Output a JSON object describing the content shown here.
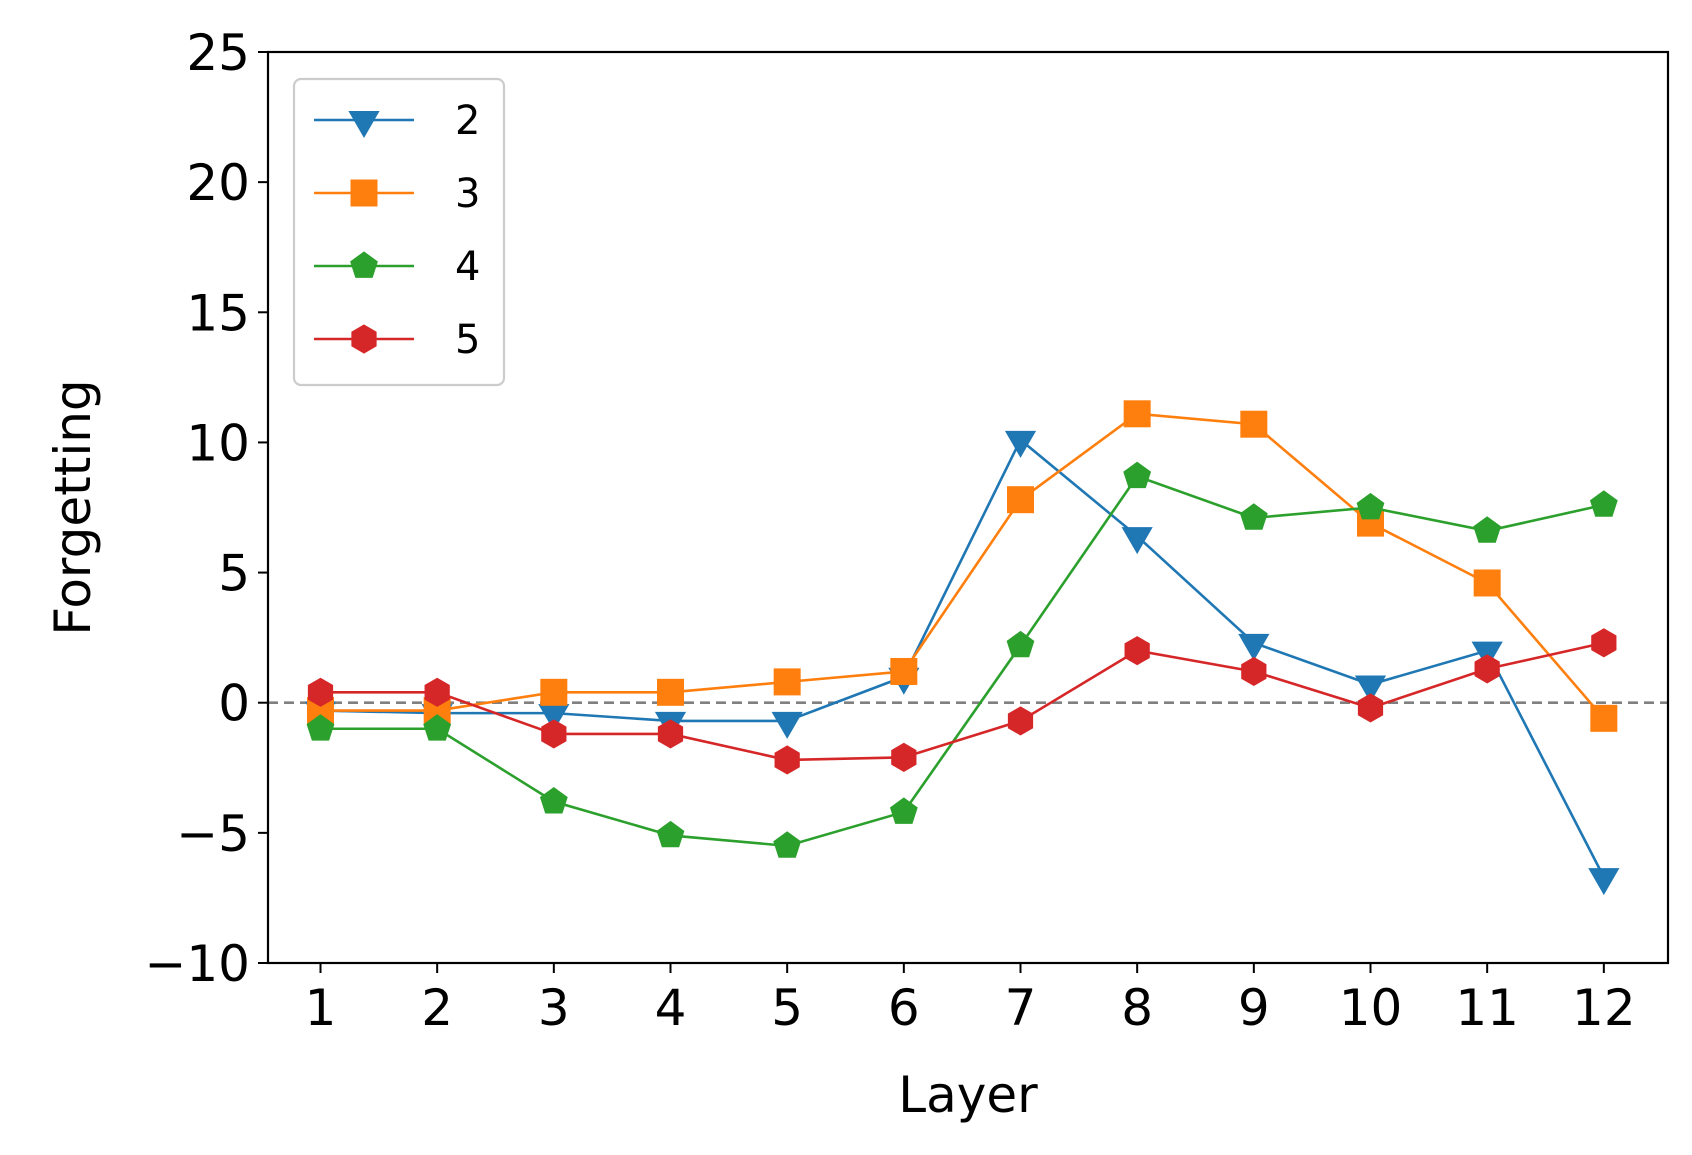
{
  "chart_data": {
    "type": "line",
    "title": "",
    "xlabel": "Layer",
    "ylabel": "Forgetting",
    "xlim": [
      0.55,
      12.55
    ],
    "ylim": [
      -10,
      25
    ],
    "x": [
      1,
      2,
      3,
      4,
      5,
      6,
      7,
      8,
      9,
      10,
      11,
      12
    ],
    "x_ticks": [
      "1",
      "2",
      "3",
      "4",
      "5",
      "6",
      "7",
      "8",
      "9",
      "10",
      "11",
      "12"
    ],
    "y_ticks": [
      -10,
      -5,
      0,
      5,
      10,
      15,
      20,
      25
    ],
    "y_tick_labels": [
      "−10",
      "−5",
      "0",
      "5",
      "10",
      "15",
      "20",
      "25"
    ],
    "reference_line": {
      "y": 0,
      "style": "dashed",
      "color": "#808080"
    },
    "legend": {
      "placement": "upper-left"
    },
    "grid": false,
    "series": [
      {
        "name": "2",
        "color": "#1f77b4",
        "marker": "triangle-down",
        "values": [
          -0.3,
          -0.4,
          -0.4,
          -0.7,
          -0.7,
          1.0,
          10.1,
          6.4,
          2.3,
          0.7,
          2.0,
          -6.7
        ]
      },
      {
        "name": "3",
        "color": "#ff7f0e",
        "marker": "square",
        "values": [
          -0.3,
          -0.3,
          0.4,
          0.4,
          0.8,
          1.2,
          7.8,
          11.1,
          10.7,
          6.9,
          4.6,
          -0.6
        ]
      },
      {
        "name": "4",
        "color": "#2ca02c",
        "marker": "pentagon",
        "values": [
          -1.0,
          -1.0,
          -3.8,
          -5.1,
          -5.5,
          -4.2,
          2.2,
          8.7,
          7.1,
          7.5,
          6.6,
          7.6
        ]
      },
      {
        "name": "5",
        "color": "#d62728",
        "marker": "hexagon",
        "values": [
          0.4,
          0.4,
          -1.2,
          -1.2,
          -2.2,
          -2.1,
          -0.7,
          2.0,
          1.2,
          -0.2,
          1.3,
          2.3
        ]
      }
    ]
  }
}
